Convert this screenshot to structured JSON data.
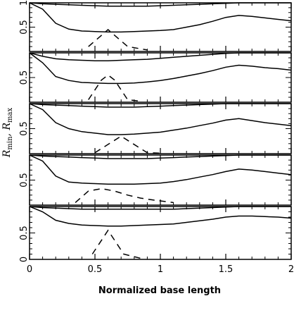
{
  "chart_data": {
    "type": "line",
    "layout": "5 vertically stacked panels sharing x-axis",
    "xlabel": "Normalized base length",
    "ylabel": {
      "R1": "R",
      "sub1": "min",
      "sep": ", ",
      "R2": "R",
      "sub2": "max"
    },
    "xlim": [
      0,
      2
    ],
    "ylim": [
      0,
      1
    ],
    "x_tick_labels": [
      "0",
      "0.5",
      "1",
      "1.5",
      "2"
    ],
    "y_tick_labels": [
      "0",
      "0.5",
      "1"
    ],
    "grid": false,
    "legend": "none",
    "panels": [
      {
        "series": [
          {
            "style": "solid",
            "x": [
              0,
              0.1,
              0.2,
              0.3,
              0.4,
              0.5,
              0.6,
              0.7,
              0.8,
              0.9,
              1.0,
              1.1,
              1.2,
              1.3,
              1.4,
              1.5,
              1.6,
              1.7,
              1.8,
              1.9,
              2.0
            ],
            "y": [
              1.0,
              0.98,
              0.97,
              0.96,
              0.95,
              0.94,
              0.93,
              0.93,
              0.93,
              0.93,
              0.94,
              0.95,
              0.96,
              0.97,
              0.98,
              0.99,
              1.0,
              1.0,
              1.0,
              1.0,
              1.0
            ]
          },
          {
            "style": "solid",
            "x": [
              0,
              0.1,
              0.2,
              0.3,
              0.4,
              0.5,
              0.6,
              0.7,
              0.8,
              0.9,
              1.0,
              1.1,
              1.2,
              1.3,
              1.4,
              1.5,
              1.6,
              1.7,
              1.8,
              1.9,
              2.0
            ],
            "y": [
              1.0,
              0.87,
              0.58,
              0.46,
              0.42,
              0.41,
              0.4,
              0.4,
              0.41,
              0.42,
              0.43,
              0.45,
              0.5,
              0.55,
              0.62,
              0.7,
              0.74,
              0.72,
              0.69,
              0.66,
              0.63
            ]
          },
          {
            "style": "dashed",
            "x": [
              0.45,
              0.6,
              0.75,
              0.9
            ],
            "y": [
              0.1,
              0.45,
              0.1,
              0.03
            ]
          }
        ]
      },
      {
        "series": [
          {
            "style": "solid",
            "x": [
              0,
              0.1,
              0.2,
              0.3,
              0.4,
              0.5,
              0.6,
              0.7,
              0.8,
              0.9,
              1.0,
              1.1,
              1.2,
              1.3,
              1.4,
              1.5,
              1.6,
              1.7,
              1.8,
              1.9,
              2.0
            ],
            "y": [
              1.0,
              0.93,
              0.88,
              0.86,
              0.85,
              0.84,
              0.84,
              0.85,
              0.86,
              0.87,
              0.89,
              0.91,
              0.93,
              0.95,
              0.97,
              0.99,
              1.0,
              1.0,
              1.0,
              1.0,
              1.0
            ]
          },
          {
            "style": "solid",
            "x": [
              0,
              0.1,
              0.2,
              0.3,
              0.4,
              0.5,
              0.6,
              0.7,
              0.8,
              0.9,
              1.0,
              1.1,
              1.2,
              1.3,
              1.4,
              1.5,
              1.6,
              1.7,
              1.8,
              1.9,
              2.0
            ],
            "y": [
              1.0,
              0.8,
              0.52,
              0.44,
              0.4,
              0.39,
              0.38,
              0.38,
              0.39,
              0.41,
              0.44,
              0.48,
              0.53,
              0.58,
              0.64,
              0.71,
              0.75,
              0.73,
              0.7,
              0.68,
              0.65
            ]
          },
          {
            "style": "dashed",
            "x": [
              0.45,
              0.55,
              0.6,
              0.65,
              0.75,
              0.85
            ],
            "y": [
              0.05,
              0.45,
              0.55,
              0.45,
              0.05,
              0.02
            ]
          }
        ]
      },
      {
        "series": [
          {
            "style": "solid",
            "x": [
              0,
              0.1,
              0.2,
              0.3,
              0.4,
              0.5,
              0.6,
              0.7,
              0.8,
              0.9,
              1.0,
              1.1,
              1.2,
              1.3,
              1.4,
              1.5,
              1.6,
              1.7,
              1.8,
              1.9,
              2.0
            ],
            "y": [
              1.0,
              0.98,
              0.97,
              0.96,
              0.95,
              0.94,
              0.93,
              0.93,
              0.93,
              0.94,
              0.95,
              0.96,
              0.97,
              0.98,
              0.99,
              1.0,
              1.0,
              1.0,
              1.0,
              1.0,
              1.0
            ]
          },
          {
            "style": "solid",
            "x": [
              0,
              0.1,
              0.2,
              0.3,
              0.4,
              0.5,
              0.6,
              0.7,
              0.8,
              0.9,
              1.0,
              1.1,
              1.2,
              1.3,
              1.4,
              1.5,
              1.6,
              1.7,
              1.8,
              1.9,
              2.0
            ],
            "y": [
              1.0,
              0.88,
              0.62,
              0.5,
              0.44,
              0.41,
              0.38,
              0.38,
              0.39,
              0.41,
              0.43,
              0.47,
              0.51,
              0.56,
              0.61,
              0.67,
              0.7,
              0.66,
              0.62,
              0.59,
              0.56
            ]
          },
          {
            "style": "dashed",
            "x": [
              0.5,
              0.7,
              0.85,
              0.9,
              1.0
            ],
            "y": [
              0.02,
              0.35,
              0.1,
              0.02,
              0.01
            ]
          }
        ]
      },
      {
        "series": [
          {
            "style": "solid",
            "x": [
              0,
              0.1,
              0.2,
              0.3,
              0.4,
              0.5,
              0.6,
              0.7,
              0.8,
              0.9,
              1.0,
              1.1,
              1.2,
              1.3,
              1.4,
              1.5,
              1.6,
              1.7,
              1.8,
              1.9,
              2.0
            ],
            "y": [
              1.0,
              0.98,
              0.97,
              0.96,
              0.95,
              0.94,
              0.93,
              0.93,
              0.93,
              0.93,
              0.94,
              0.95,
              0.96,
              0.97,
              0.98,
              0.99,
              1.0,
              1.0,
              1.0,
              1.0,
              1.0
            ]
          },
          {
            "style": "solid",
            "x": [
              0,
              0.1,
              0.2,
              0.3,
              0.4,
              0.5,
              0.6,
              0.7,
              0.8,
              0.9,
              1.0,
              1.1,
              1.2,
              1.3,
              1.4,
              1.5,
              1.6,
              1.7,
              1.8,
              1.9,
              2.0
            ],
            "y": [
              1.0,
              0.88,
              0.58,
              0.46,
              0.44,
              0.43,
              0.42,
              0.42,
              0.42,
              0.43,
              0.44,
              0.47,
              0.51,
              0.56,
              0.61,
              0.67,
              0.72,
              0.7,
              0.67,
              0.64,
              0.61
            ]
          },
          {
            "style": "dashed",
            "x": [
              0.35,
              0.45,
              0.55,
              0.65,
              0.75,
              0.85,
              0.95,
              1.1
            ],
            "y": [
              0.05,
              0.28,
              0.33,
              0.28,
              0.2,
              0.14,
              0.1,
              0.05
            ]
          }
        ]
      },
      {
        "series": [
          {
            "style": "solid",
            "x": [
              0,
              0.1,
              0.2,
              0.3,
              0.4,
              0.5,
              0.6,
              0.7,
              0.8,
              0.9,
              1.0,
              1.1,
              1.2,
              1.3,
              1.4,
              1.5,
              1.6,
              1.7,
              1.8,
              1.9,
              2.0
            ],
            "y": [
              1.0,
              0.98,
              0.97,
              0.96,
              0.95,
              0.95,
              0.95,
              0.95,
              0.95,
              0.95,
              0.95,
              0.95,
              0.96,
              0.97,
              0.98,
              0.99,
              1.0,
              1.0,
              1.0,
              1.0,
              1.0
            ]
          },
          {
            "style": "solid",
            "x": [
              0,
              0.1,
              0.2,
              0.3,
              0.4,
              0.5,
              0.6,
              0.7,
              0.8,
              0.9,
              1.0,
              1.1,
              1.2,
              1.3,
              1.4,
              1.5,
              1.6,
              1.7,
              1.8,
              1.9,
              2.0
            ],
            "y": [
              1.0,
              0.9,
              0.74,
              0.68,
              0.65,
              0.64,
              0.63,
              0.63,
              0.64,
              0.65,
              0.66,
              0.67,
              0.7,
              0.73,
              0.76,
              0.8,
              0.82,
              0.82,
              0.81,
              0.8,
              0.78
            ]
          },
          {
            "style": "dashed",
            "x": [
              0.48,
              0.6,
              0.72,
              0.85
            ],
            "y": [
              0.1,
              0.55,
              0.1,
              0.02
            ]
          }
        ]
      }
    ]
  }
}
